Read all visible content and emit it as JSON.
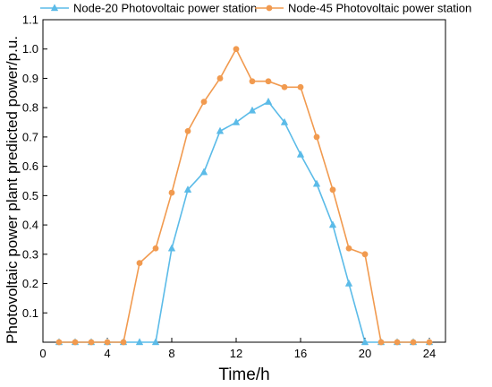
{
  "chart_data": {
    "type": "line",
    "xlabel": "Time/h",
    "ylabel": "Photovoltaic power plant predicted power/p.u.",
    "xlim": [
      0,
      25
    ],
    "ylim": [
      0,
      1.1
    ],
    "xticks": [
      0,
      4,
      8,
      12,
      16,
      20,
      24
    ],
    "yticks": [
      0.1,
      0.2,
      0.3,
      0.4,
      0.5,
      0.6,
      0.7,
      0.8,
      0.9,
      1.0,
      1.1
    ],
    "legend_position": "top",
    "series": [
      {
        "name": "Node-20 Photovoltaic power station",
        "color": "#5bbbe8",
        "marker": "triangle",
        "x": [
          1,
          2,
          3,
          4,
          5,
          6,
          7,
          8,
          9,
          10,
          11,
          12,
          13,
          14,
          15,
          16,
          17,
          18,
          19,
          20,
          21,
          22,
          23,
          24
        ],
        "values": [
          0,
          0,
          0,
          0,
          0,
          0,
          0,
          0.32,
          0.52,
          0.58,
          0.72,
          0.75,
          0.79,
          0.82,
          0.75,
          0.64,
          0.54,
          0.4,
          0.2,
          0,
          0,
          0,
          0,
          0
        ]
      },
      {
        "name": "Node-45 Photovoltaic power station",
        "color": "#f19a4f",
        "marker": "circle",
        "x": [
          1,
          2,
          3,
          4,
          5,
          6,
          7,
          8,
          9,
          10,
          11,
          12,
          13,
          14,
          15,
          16,
          17,
          18,
          19,
          20,
          21,
          22,
          23,
          24
        ],
        "values": [
          0,
          0,
          0,
          0,
          0,
          0.27,
          0.32,
          0.51,
          0.72,
          0.82,
          0.9,
          1.0,
          0.89,
          0.89,
          0.87,
          0.87,
          0.7,
          0.52,
          0.32,
          0.3,
          0,
          0,
          0,
          0
        ]
      }
    ]
  }
}
